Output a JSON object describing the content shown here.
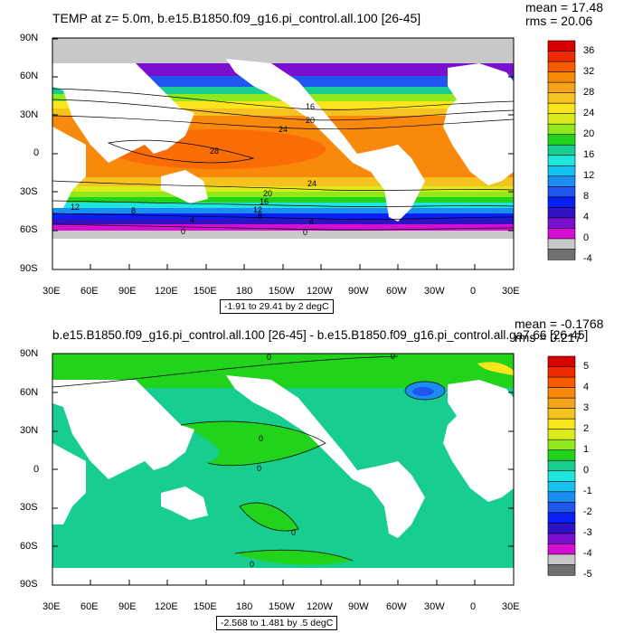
{
  "panel_top": {
    "title": "TEMP at z=   5.0m, b.e15.B1850.f09_g16.pi_control.all.100 [26-45]",
    "stats": {
      "mean": "mean = 17.48",
      "rms": "rms = 20.06"
    },
    "lat_labels": [
      "90N",
      "60N",
      "30N",
      "0",
      "30S",
      "60S",
      "90S"
    ],
    "lon_labels": [
      "30E",
      "60E",
      "90E",
      "120E",
      "150E",
      "180",
      "150W",
      "120W",
      "90W",
      "60W",
      "30W",
      "0",
      "30E"
    ],
    "range_text": "-1.91 to 29.41 by 2 degC",
    "contour_labels": [
      "16",
      "20",
      "24",
      "28",
      "24",
      "20",
      "16",
      "12",
      "12",
      "8",
      "8",
      "4",
      "4",
      "0",
      "0"
    ],
    "colorbar": {
      "labels": [
        "36",
        "32",
        "28",
        "24",
        "20",
        "16",
        "12",
        "8",
        "4",
        "0",
        "-4"
      ],
      "colors": [
        "#d90000",
        "#ee2c00",
        "#f85a00",
        "#f9890a",
        "#f6a31c",
        "#f6c21f",
        "#f8e51c",
        "#dcec1b",
        "#91e81a",
        "#22d31c",
        "#18ce8f",
        "#1ee6dc",
        "#18c2f0",
        "#1a8ef0",
        "#1f56ee",
        "#0a1ff5",
        "#2d13c4",
        "#7b0fcf",
        "#d40fd3",
        "#c8c8c8",
        "#707070"
      ]
    }
  },
  "panel_bottom": {
    "title": "b.e15.B1850.f09_g16.pi_control.all.100 [26-45] - b.e15.B1850.f09_g16.pi_control.all.ga7.66 [26-45]",
    "stats": {
      "mean": "mean = -0.1768",
      "rms": "rms = 0.217"
    },
    "lat_labels": [
      "90N",
      "60N",
      "30N",
      "0",
      "30S",
      "60S",
      "90S"
    ],
    "lon_labels": [
      "30E",
      "60E",
      "90E",
      "120E",
      "150E",
      "180",
      "150W",
      "120W",
      "90W",
      "60W",
      "30W",
      "0",
      "30E"
    ],
    "range_text": "-2.568 to 1.481 by .5 degC",
    "contour_labels": [
      "0",
      "0",
      "0",
      "0",
      "0",
      "0"
    ],
    "colorbar": {
      "labels": [
        "5",
        "4",
        "3",
        "2",
        "1",
        "0",
        "-1",
        "-2",
        "-3",
        "-4",
        "-5"
      ],
      "colors": [
        "#d90000",
        "#ee2c00",
        "#f85a00",
        "#f9890a",
        "#f6a31c",
        "#f6c21f",
        "#f8e51c",
        "#dcec1b",
        "#91e81a",
        "#22d31c",
        "#18ce8f",
        "#1ee6dc",
        "#18c2f0",
        "#1a8ef0",
        "#1f56ee",
        "#0a1ff5",
        "#2d13c4",
        "#7b0fcf",
        "#d40fd3",
        "#c8c8c8",
        "#707070"
      ]
    }
  }
}
